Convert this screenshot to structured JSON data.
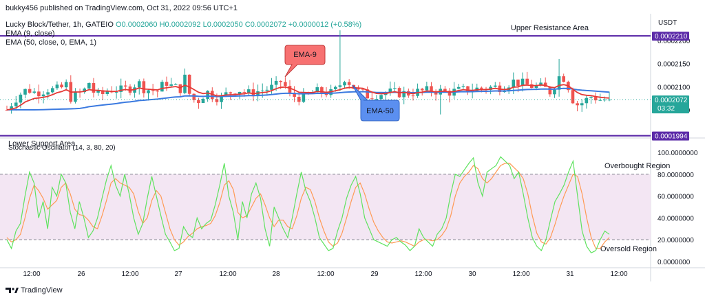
{
  "header": {
    "published": "bukky456 published on TradingView.com, Oct 31, 2022 09:56 UTC+1",
    "symbol": "Lucky Block/Tether, 1h, GATEIO",
    "ohlc": "O0.0002060 H0.0002092 L0.0002050 C0.0002072 +0.0000012 (+0.58%)",
    "ind1": "EMA (9, close)",
    "ind2": "EMA (50, close, 0, EMA, 1)"
  },
  "currency": "USDT",
  "footer_logo": "TradingView",
  "colors": {
    "up": "#26a69a",
    "down": "#ef5350",
    "ema9": "#e53935",
    "ema50": "#3b7ae0",
    "level_line": "#5b2aa8",
    "stoch_k": "#5fe35f",
    "stoch_d": "#ff9a55",
    "stoch_band": "#f3e6f3"
  },
  "chart_data": [
    {
      "type": "candlestick",
      "title": "Lucky Block/Tether, 1h, GATEIO",
      "y_ticks": [
        "0.0002200",
        "0.0002150",
        "0.0002100",
        "0.0002050"
      ],
      "ylim": [
        0.00019935,
        0.0002246
      ],
      "x_ticks": [
        "12:00",
        "26",
        "12:00",
        "27",
        "12:00",
        "28",
        "12:00",
        "29",
        "12:00",
        "30",
        "12:00",
        "31",
        "12:00"
      ],
      "price_labels": {
        "upper": "0.0002210",
        "current": "0.0002072",
        "countdown": "03:32",
        "lower": "0.0001994"
      },
      "levels": [
        {
          "name": "Upper Resistance Area",
          "value": 0.000221
        },
        {
          "name": "Lower Support Area",
          "value": 0.0001994
        }
      ],
      "annotations": [
        {
          "text": "EMA-9"
        },
        {
          "text": "EMA-50"
        }
      ],
      "last_close": 0.0002072
    },
    {
      "type": "line",
      "title": "Stochastic Oscillator (14, 3, 80, 20)",
      "y_ticks": [
        "100.0000000",
        "80.0000000",
        "60.0000000",
        "40.0000000",
        "20.0000000",
        "0.0000000"
      ],
      "ylim": [
        0,
        100
      ],
      "band": [
        20,
        80
      ],
      "band_labels": {
        "upper": "Overbought Region",
        "lower": "Oversold Region"
      },
      "series": [
        {
          "values": [
            20,
            12,
            28,
            35,
            60,
            82,
            72,
            40,
            55,
            30,
            68,
            60,
            80,
            72,
            45,
            30,
            55,
            40,
            22,
            28,
            40,
            58,
            75,
            88,
            70,
            60,
            80,
            62,
            40,
            25,
            35,
            58,
            78,
            60,
            42,
            25,
            18,
            10,
            12,
            32,
            25,
            22,
            40,
            30,
            35,
            38,
            52,
            70,
            90,
            60,
            45,
            20,
            55,
            40,
            62,
            72,
            58,
            30,
            14,
            50,
            40,
            30,
            22,
            40,
            62,
            82,
            65,
            55,
            40,
            22,
            16,
            10,
            12,
            28,
            40,
            58,
            70,
            78,
            62,
            40,
            30,
            20,
            18,
            16,
            14,
            20,
            22,
            18,
            15,
            10,
            14,
            30,
            22,
            18,
            14,
            25,
            30,
            40,
            62,
            80,
            78,
            84,
            90,
            95,
            72,
            60,
            82,
            85,
            88,
            96,
            92,
            88,
            76,
            82,
            62,
            40,
            22,
            14,
            10,
            20,
            38,
            55,
            62,
            70,
            82,
            92,
            60,
            28,
            14,
            8,
            10,
            20,
            28,
            25
          ]
        },
        {
          "values": [
            22,
            18,
            20,
            25,
            40,
            58,
            70,
            65,
            58,
            48,
            52,
            56,
            68,
            72,
            62,
            48,
            43,
            42,
            38,
            32,
            30,
            42,
            56,
            72,
            76,
            72,
            70,
            68,
            62,
            46,
            35,
            40,
            56,
            65,
            60,
            45,
            30,
            20,
            15,
            18,
            23,
            26,
            30,
            32,
            33,
            35,
            42,
            54,
            70,
            74,
            66,
            45,
            40,
            42,
            50,
            58,
            62,
            52,
            40,
            32,
            38,
            38,
            32,
            30,
            42,
            58,
            68,
            66,
            55,
            40,
            28,
            18,
            14,
            17,
            26,
            40,
            55,
            68,
            72,
            62,
            48,
            36,
            28,
            22,
            18,
            17,
            18,
            19,
            18,
            16,
            14,
            18,
            20,
            20,
            19,
            20,
            24,
            30,
            42,
            60,
            72,
            78,
            82,
            88,
            85,
            76,
            72,
            76,
            82,
            88,
            90,
            90,
            86,
            82,
            76,
            62,
            42,
            26,
            18,
            16,
            22,
            34,
            48,
            60,
            70,
            80,
            78,
            62,
            40,
            22,
            12,
            12,
            18,
            22
          ]
        }
      ],
      "series_note": ""
    }
  ]
}
